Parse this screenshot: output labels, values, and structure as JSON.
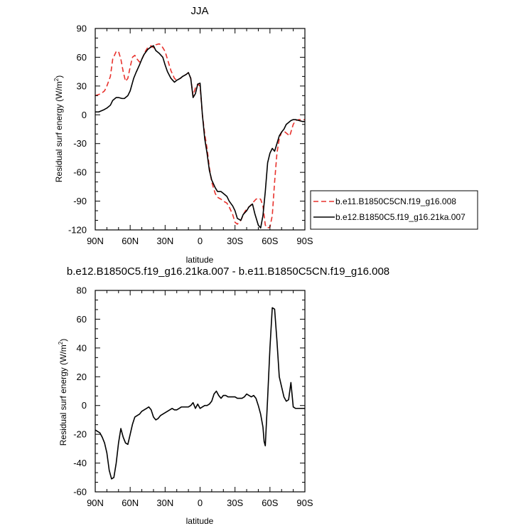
{
  "chart_data": [
    {
      "type": "line",
      "title": "JJA",
      "xlabel": "latitude",
      "ylabel": "Residual surf energy (W/m²)",
      "ylabel_parts": {
        "text": "Residual surf energy (W/m",
        "sup": "2",
        "close": ")"
      },
      "xlim": [
        90,
        -90
      ],
      "ylim": [
        -120,
        90
      ],
      "xticks": [
        90,
        60,
        30,
        0,
        -30,
        -60,
        -90
      ],
      "xtick_labels": [
        "90N",
        "60N",
        "30N",
        "0",
        "30S",
        "60S",
        "90S"
      ],
      "yticks": [
        -120,
        -90,
        -60,
        -30,
        0,
        30,
        60,
        90
      ],
      "ytick_labels": [
        "-120",
        "-90",
        "-60",
        "-30",
        "0",
        "30",
        "60",
        "90"
      ],
      "legend_position": "right",
      "series": [
        {
          "name": "b.e11.B1850C5CN.f19_g16.008",
          "color": "#e8322d",
          "dash": true,
          "x": [
            90,
            85,
            82,
            80,
            77,
            75,
            72,
            70,
            68,
            66,
            64,
            62,
            60,
            58,
            56,
            54,
            52,
            50,
            47,
            45,
            42,
            40,
            38,
            35,
            33,
            30,
            28,
            25,
            22,
            20,
            17,
            15,
            12,
            10,
            8,
            6,
            4,
            2,
            0,
            -2,
            -4,
            -6,
            -8,
            -10,
            -13,
            -15,
            -18,
            -20,
            -23,
            -25,
            -28,
            -30,
            -32,
            -35,
            -38,
            -40,
            -43,
            -45,
            -48,
            -50,
            -52,
            -54,
            -55,
            -56,
            -58,
            -60,
            -62,
            -64,
            -66,
            -68,
            -70,
            -72,
            -75,
            -77,
            -80,
            -82,
            -85,
            -88,
            -90
          ],
          "y": [
            20,
            22,
            25,
            30,
            40,
            58,
            66,
            66,
            58,
            45,
            35,
            38,
            50,
            60,
            62,
            58,
            55,
            58,
            66,
            70,
            72,
            70,
            73,
            74,
            72,
            66,
            58,
            46,
            38,
            36,
            38,
            40,
            42,
            44,
            38,
            20,
            28,
            32,
            30,
            0,
            -20,
            -35,
            -55,
            -70,
            -82,
            -86,
            -88,
            -90,
            -92,
            -96,
            -104,
            -112,
            -114,
            -110,
            -102,
            -98,
            -95,
            -92,
            -88,
            -87,
            -88,
            -95,
            -105,
            -115,
            -118,
            -117,
            -105,
            -70,
            -40,
            -25,
            -18,
            -17,
            -20,
            -22,
            -10,
            -6,
            -5,
            -5,
            -5
          ]
        },
        {
          "name": "b.e12.B1850C5.f19_g16.21ka.007",
          "color": "#000000",
          "dash": false,
          "x": [
            90,
            87,
            85,
            83,
            80,
            77,
            75,
            72,
            70,
            67,
            65,
            62,
            60,
            57,
            55,
            52,
            50,
            48,
            45,
            43,
            40,
            38,
            35,
            32,
            30,
            28,
            25,
            22,
            20,
            17,
            15,
            12,
            10,
            8,
            6,
            4,
            2,
            0,
            -2,
            -4,
            -6,
            -8,
            -10,
            -13,
            -15,
            -18,
            -20,
            -23,
            -25,
            -28,
            -30,
            -32,
            -35,
            -37,
            -40,
            -42,
            -45,
            -47,
            -50,
            -52,
            -54,
            -56,
            -58,
            -60,
            -62,
            -64,
            -66,
            -68,
            -70,
            -72,
            -74,
            -76,
            -78,
            -80,
            -82,
            -85,
            -88,
            -90
          ],
          "y": [
            3,
            3,
            4,
            5,
            7,
            10,
            15,
            18,
            18,
            17,
            17,
            20,
            25,
            38,
            44,
            52,
            58,
            63,
            68,
            70,
            72,
            67,
            64,
            60,
            52,
            45,
            38,
            34,
            36,
            38,
            40,
            42,
            44,
            38,
            18,
            22,
            32,
            33,
            0,
            -25,
            -40,
            -58,
            -68,
            -76,
            -80,
            -80,
            -82,
            -85,
            -90,
            -95,
            -100,
            -108,
            -110,
            -104,
            -100,
            -96,
            -93,
            -103,
            -115,
            -118,
            -105,
            -80,
            -50,
            -40,
            -35,
            -38,
            -30,
            -22,
            -18,
            -15,
            -10,
            -8,
            -6,
            -5,
            -5,
            -6,
            -7,
            -7
          ]
        }
      ]
    },
    {
      "type": "line",
      "title": "b.e12.B1850C5.f19_g16.21ka.007 - b.e11.B1850C5CN.f19_g16.008",
      "xlabel": "latitude",
      "ylabel": "Residual surf energy (W/m²)",
      "ylabel_parts": {
        "text": "Residual surf energy (W/m",
        "sup": "2",
        "close": ")"
      },
      "xlim": [
        90,
        -90
      ],
      "ylim": [
        -60,
        80
      ],
      "xticks": [
        90,
        60,
        30,
        0,
        -30,
        -60,
        -90
      ],
      "xtick_labels": [
        "90N",
        "60N",
        "30N",
        "0",
        "30S",
        "60S",
        "90S"
      ],
      "yticks": [
        -60,
        -40,
        -20,
        0,
        20,
        40,
        60,
        80
      ],
      "ytick_labels": [
        "-60",
        "-40",
        "-20",
        "0",
        "20",
        "40",
        "60",
        "80"
      ],
      "series": [
        {
          "name": "",
          "color": "#000000",
          "dash": false,
          "x": [
            90,
            88,
            86,
            84,
            82,
            80,
            78,
            76,
            74,
            72,
            70,
            68,
            66,
            64,
            62,
            60,
            58,
            56,
            54,
            52,
            50,
            48,
            46,
            44,
            42,
            40,
            38,
            36,
            34,
            32,
            30,
            28,
            26,
            24,
            22,
            20,
            18,
            16,
            14,
            12,
            10,
            8,
            6,
            4,
            2,
            0,
            -2,
            -4,
            -6,
            -8,
            -10,
            -12,
            -14,
            -16,
            -18,
            -20,
            -22,
            -24,
            -26,
            -28,
            -30,
            -32,
            -34,
            -36,
            -38,
            -40,
            -42,
            -44,
            -46,
            -48,
            -50,
            -52,
            -54,
            -55,
            -56,
            -58,
            -60,
            -62,
            -64,
            -66,
            -68,
            -70,
            -72,
            -74,
            -76,
            -78,
            -80,
            -82,
            -84,
            -86,
            -88,
            -90
          ],
          "y": [
            -17,
            -18,
            -19,
            -22,
            -26,
            -33,
            -45,
            -51,
            -50,
            -40,
            -26,
            -16,
            -22,
            -26,
            -27,
            -20,
            -13,
            -8,
            -7,
            -6,
            -4,
            -3,
            -2,
            -1,
            -3,
            -8,
            -10,
            -9,
            -7,
            -6,
            -5,
            -4,
            -3,
            -2,
            -3,
            -3,
            -2,
            -1,
            -1,
            -1,
            -1,
            0,
            2,
            -2,
            1,
            -2,
            -1,
            0,
            0,
            1,
            3,
            8,
            10,
            7,
            5,
            7,
            7,
            6,
            6,
            6,
            6,
            5,
            5,
            5,
            6,
            8,
            7,
            6,
            7,
            5,
            0,
            -6,
            -15,
            -25,
            -28,
            5,
            40,
            68,
            67,
            45,
            20,
            13,
            6,
            3,
            4,
            16,
            -1,
            -2,
            -2,
            -2,
            -2,
            -2
          ]
        }
      ]
    }
  ]
}
